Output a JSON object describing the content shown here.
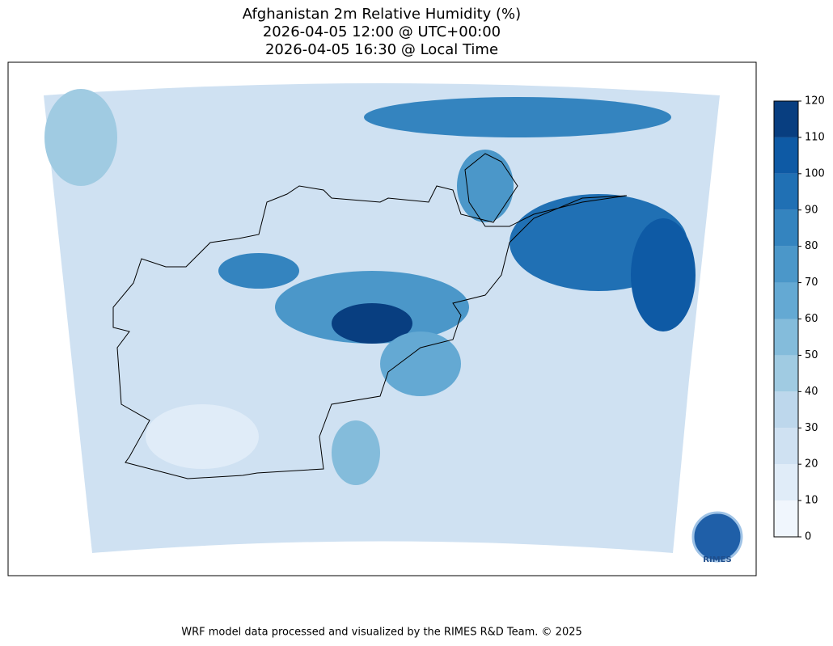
{
  "title": [
    "Afghanistan 2m Relative Humidity (%)",
    "2026-04-05 12:00 @ UTC+00:00",
    "2026-04-05 16:30 @ Local Time"
  ],
  "colorbar": {
    "ticks": [
      0,
      10,
      20,
      30,
      40,
      50,
      60,
      70,
      80,
      90,
      100,
      110,
      120
    ],
    "colors": [
      "#f0f6fd",
      "#e0ecf8",
      "#cfe1f2",
      "#bdd7ec",
      "#a0cbe2",
      "#84bcdb",
      "#64a9d3",
      "#4b97c9",
      "#3484bf",
      "#2070b4",
      "#0e5aa5",
      "#083e80"
    ]
  },
  "logo": "RIMES",
  "footer": "WRF model data processed and visualized by the RIMES R&D Team. © 2025"
}
